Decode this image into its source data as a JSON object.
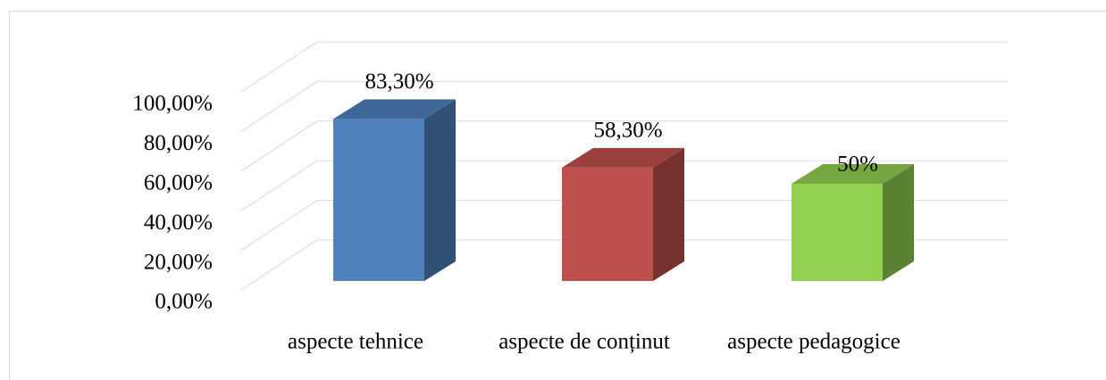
{
  "chart_data": {
    "type": "bar3d",
    "categories": [
      "aspecte tehnice",
      "aspecte de conținut",
      "aspecte pedagogice"
    ],
    "values": [
      83.3,
      58.3,
      50
    ],
    "value_labels": [
      "83,30%",
      "58,30%",
      "50%"
    ],
    "colors": [
      "#4f81bd",
      "#c0504d",
      "#92d050"
    ],
    "ylim": [
      0,
      100
    ],
    "yticks": [
      {
        "value": 0,
        "label": "0,00%"
      },
      {
        "value": 20,
        "label": "20,00%"
      },
      {
        "value": 40,
        "label": "40,00%"
      },
      {
        "value": 60,
        "label": "60,00%"
      },
      {
        "value": 80,
        "label": "80,00%"
      },
      {
        "value": 100,
        "label": "100,00%"
      }
    ],
    "grid": true
  }
}
